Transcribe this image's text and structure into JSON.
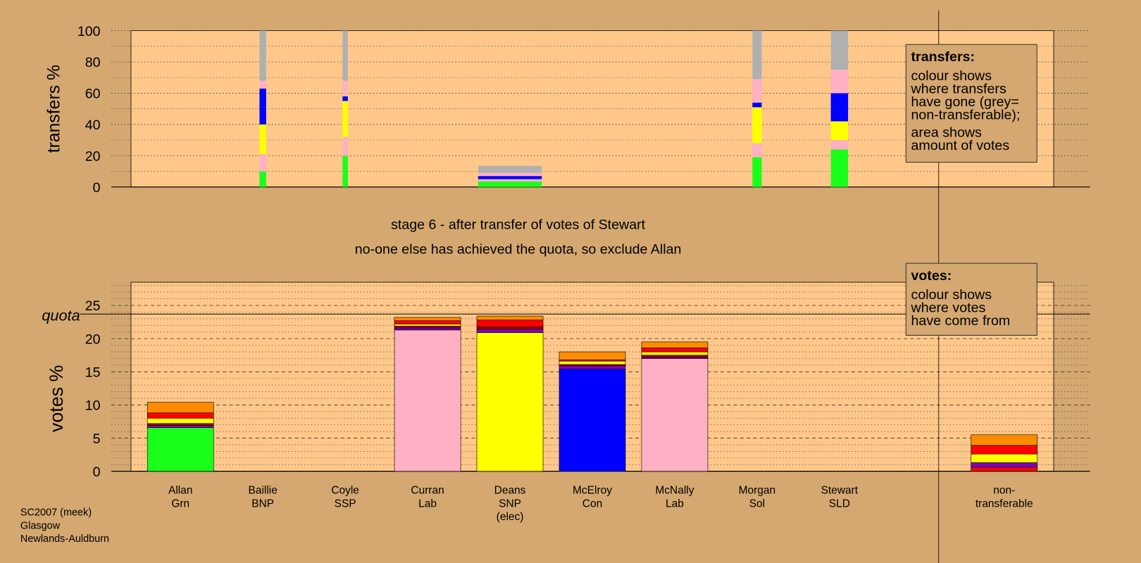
{
  "chart_data": [
    {
      "type": "bar",
      "stacked": true,
      "y_label": "transfers %",
      "categories": [
        [
          "Allan",
          "Grn"
        ],
        [
          "Baillie",
          "BNP"
        ],
        [
          "Coyle",
          "SSP"
        ],
        [
          "Curran",
          "Lab"
        ],
        [
          "Deans",
          "SNP",
          "(elec)"
        ],
        [
          "McElroy",
          "Con"
        ],
        [
          "McNally",
          "Lab"
        ],
        [
          "Morgan",
          "Sol"
        ],
        [
          "Stewart",
          "SLD"
        ],
        null,
        [
          "non-",
          "transferable"
        ]
      ],
      "bar_widths": [
        null,
        1.0,
        0.8,
        null,
        9.6,
        null,
        null,
        1.4,
        2.6,
        null,
        null
      ],
      "series": [
        {
          "color": "#1aff1a",
          "values": [
            null,
            10,
            20,
            null,
            3.5,
            null,
            null,
            19,
            24,
            null,
            null
          ]
        },
        {
          "color": "#ffb0c4",
          "values": [
            null,
            11,
            12,
            null,
            1.5,
            null,
            null,
            9,
            6,
            null,
            null
          ]
        },
        {
          "color": "#ffff00",
          "values": [
            null,
            19,
            23,
            null,
            0,
            null,
            null,
            23,
            12,
            null,
            null
          ]
        },
        {
          "color": "#0000ff",
          "values": [
            null,
            23,
            3,
            null,
            2,
            null,
            null,
            3,
            18,
            null,
            null
          ]
        },
        {
          "color": "#ffb0c4",
          "values": [
            null,
            5,
            10,
            null,
            2,
            null,
            null,
            15,
            15,
            null,
            null
          ]
        },
        {
          "color": "#b0b0b0",
          "values": [
            null,
            32,
            32,
            null,
            4.5,
            null,
            null,
            31,
            25,
            null,
            null
          ]
        }
      ],
      "ylim": [
        0,
        100
      ],
      "yticks": [
        0,
        20,
        40,
        60,
        80,
        100
      ],
      "minor_yticks": [
        10,
        30,
        50,
        70,
        90
      ],
      "grid": true
    },
    {
      "type": "bar",
      "stacked": true,
      "y_label": "votes %",
      "categories": [
        [
          "Allan",
          "Grn"
        ],
        [
          "Baillie",
          "BNP"
        ],
        [
          "Coyle",
          "SSP"
        ],
        [
          "Curran",
          "Lab"
        ],
        [
          "Deans",
          "SNP",
          "(elec)"
        ],
        [
          "McElroy",
          "Con"
        ],
        [
          "McNally",
          "Lab"
        ],
        [
          "Morgan",
          "Sol"
        ],
        [
          "Stewart",
          "SLD"
        ],
        null,
        [
          "non-",
          "transferable"
        ]
      ],
      "series": [
        {
          "color": "#1aff1a",
          "values": [
            6.6,
            null,
            null,
            null,
            null,
            null,
            null,
            null,
            null,
            null,
            null
          ]
        },
        {
          "color": "#ffb0c4",
          "values": [
            null,
            null,
            null,
            21.3,
            null,
            null,
            17.0,
            null,
            null,
            null,
            null
          ]
        },
        {
          "color": "#ffff00",
          "values": [
            null,
            null,
            null,
            null,
            20.9,
            null,
            null,
            null,
            null,
            null,
            null
          ]
        },
        {
          "color": "#0000ff",
          "values": [
            null,
            null,
            null,
            null,
            null,
            15.4,
            null,
            null,
            null,
            null,
            null
          ]
        },
        {
          "color": "#ff0000",
          "values": [
            null,
            null,
            null,
            null,
            null,
            null,
            null,
            null,
            null,
            null,
            0.6
          ]
        },
        {
          "color": "#8000c0",
          "values": [
            0.3,
            null,
            null,
            0.3,
            0.5,
            0.5,
            0.2,
            null,
            null,
            null,
            0.7
          ]
        },
        {
          "color": "#a00000",
          "values": [
            0.3,
            null,
            null,
            0.3,
            0.4,
            0.2,
            0.3,
            null,
            null,
            null,
            null
          ]
        },
        {
          "color": "#ffff00",
          "values": [
            0.8,
            null,
            null,
            0.3,
            0,
            0.5,
            0.5,
            null,
            null,
            null,
            1.3
          ]
        },
        {
          "color": "#ff0000",
          "values": [
            0.8,
            null,
            null,
            0.5,
            1.0,
            0.2,
            0.6,
            null,
            null,
            null,
            1.3
          ]
        },
        {
          "color": "#ff8c00",
          "values": [
            1.6,
            null,
            null,
            0.5,
            0.6,
            1.2,
            0.9,
            null,
            null,
            null,
            1.6
          ]
        }
      ],
      "ylim": [
        0,
        28.5
      ],
      "yticks": [
        0,
        5,
        10,
        15,
        20,
        25
      ],
      "minor_yticks": [
        1,
        2,
        3,
        4,
        6,
        7,
        8,
        9,
        11,
        12,
        13,
        14,
        16,
        17,
        18,
        19,
        21,
        22,
        23,
        24,
        26,
        27,
        28
      ],
      "grid": true,
      "quota": 23.7,
      "quota_label": "quota"
    }
  ],
  "stage_text": [
    "stage 6 - after transfer of votes of Stewart",
    "no-one else has achieved the quota, so exclude Allan"
  ],
  "boxes": [
    {
      "heading": "transfers:",
      "paragraphs": [
        [
          "colour shows",
          "where transfers",
          "have gone (grey=",
          "non-transferable);"
        ],
        [
          "area shows",
          "amount of votes"
        ]
      ]
    },
    {
      "heading": "votes:",
      "paragraphs": [
        [
          "colour shows",
          "where votes",
          "have come from"
        ]
      ]
    }
  ],
  "footer": [
    "SC2007 (meek)",
    "Glasgow",
    "Newlands-Auldburn"
  ]
}
